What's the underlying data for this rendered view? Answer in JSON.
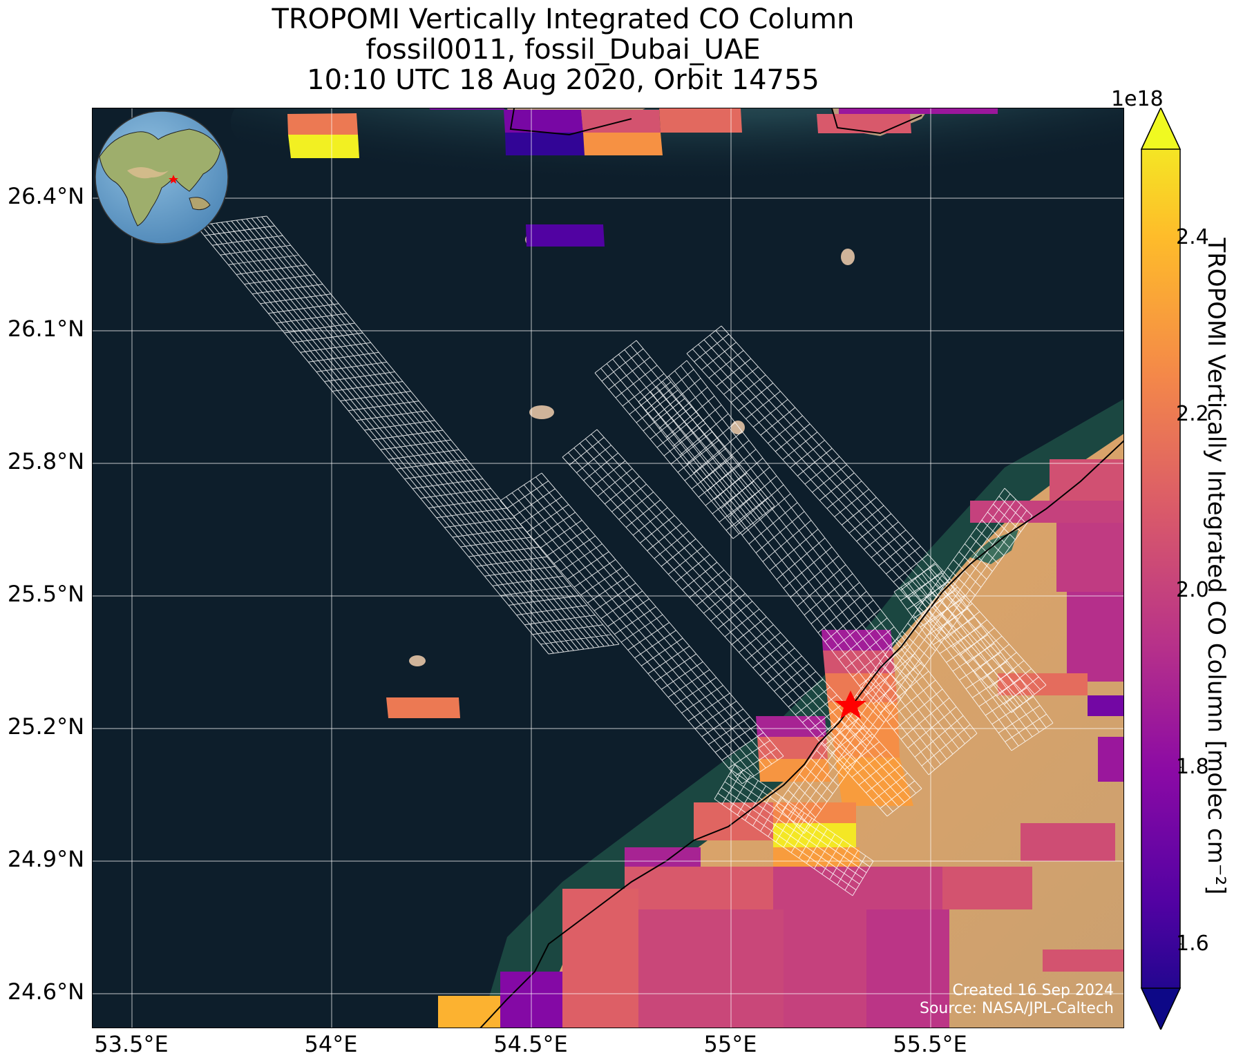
{
  "title": {
    "line1": "TROPOMI Vertically Integrated CO Column",
    "line2": "fossil0011, fossil_Dubai_UAE",
    "line3": "10:10 UTC 18 Aug 2020, Orbit 14755"
  },
  "map": {
    "lat_ticks": [
      "26.4°N",
      "26.1°N",
      "25.8°N",
      "25.5°N",
      "25.2°N",
      "24.9°N",
      "24.6°N"
    ],
    "lon_ticks": [
      "53.5°E",
      "54°E",
      "54.5°E",
      "55°E",
      "55.5°E"
    ],
    "lat_range": [
      24.5,
      26.6
    ],
    "lon_range": [
      53.4,
      55.98
    ],
    "target_marker": "red-star",
    "target_color": "#ff0000",
    "inset": "globe-locator"
  },
  "credit": {
    "created": "Created 16 Sep 2024",
    "source": "Source: NASA/JPL-Caltech"
  },
  "colorbar": {
    "exponent": "1e18",
    "ticks": [
      "2.4",
      "2.2",
      "2.0",
      "1.8",
      "1.6"
    ],
    "tick_values": [
      2.4,
      2.2,
      2.0,
      1.8,
      1.6
    ],
    "vmin": 1.55,
    "vmax": 2.5,
    "label": "TROPOMI Vertically Integrated CO Column [molec cm⁻²]",
    "colormap": "plasma"
  }
}
